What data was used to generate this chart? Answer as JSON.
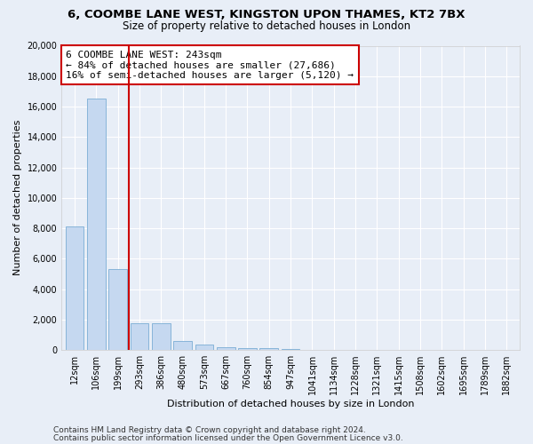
{
  "title1": "6, COOMBE LANE WEST, KINGSTON UPON THAMES, KT2 7BX",
  "title2": "Size of property relative to detached houses in London",
  "xlabel": "Distribution of detached houses by size in London",
  "ylabel": "Number of detached properties",
  "categories": [
    "12sqm",
    "106sqm",
    "199sqm",
    "293sqm",
    "386sqm",
    "480sqm",
    "573sqm",
    "667sqm",
    "760sqm",
    "854sqm",
    "947sqm",
    "1041sqm",
    "1134sqm",
    "1228sqm",
    "1321sqm",
    "1415sqm",
    "1508sqm",
    "1602sqm",
    "1695sqm",
    "1789sqm",
    "1882sqm"
  ],
  "values": [
    8100,
    16500,
    5300,
    1750,
    1750,
    600,
    350,
    200,
    150,
    100,
    50,
    0,
    0,
    0,
    0,
    0,
    0,
    0,
    0,
    0,
    0
  ],
  "bar_color": "#c5d8f0",
  "bar_edge_color": "#7aadd4",
  "vline_x": 2.5,
  "vline_color": "#cc0000",
  "annotation_line1": "6 COOMBE LANE WEST: 243sqm",
  "annotation_line2": "← 84% of detached houses are smaller (27,686)",
  "annotation_line3": "16% of semi-detached houses are larger (5,120) →",
  "annotation_box_color": "#cc0000",
  "ylim": [
    0,
    20000
  ],
  "yticks": [
    0,
    2000,
    4000,
    6000,
    8000,
    10000,
    12000,
    14000,
    16000,
    18000,
    20000
  ],
  "footer1": "Contains HM Land Registry data © Crown copyright and database right 2024.",
  "footer2": "Contains public sector information licensed under the Open Government Licence v3.0.",
  "bg_color": "#e8eef7",
  "plot_bg_color": "#e8eef7",
  "grid_color": "#ffffff",
  "title1_fontsize": 9.5,
  "title2_fontsize": 8.5,
  "axis_label_fontsize": 8,
  "tick_fontsize": 7,
  "footer_fontsize": 6.5,
  "annotation_fontsize": 8
}
